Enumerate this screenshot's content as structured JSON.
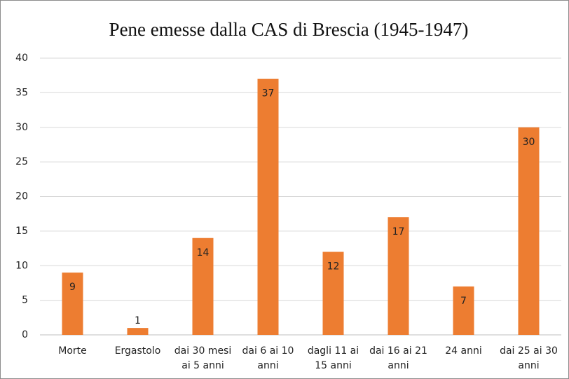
{
  "chart_data": {
    "type": "bar",
    "title": "Pene emesse dalla CAS di Brescia (1945-1947)",
    "categories": [
      "Morte",
      "Ergastolo",
      "dai 30 mesi ai 5 anni",
      "dai 6 ai 10 anni",
      "dagli 11 ai 15 anni",
      "dai 16 ai 21 anni",
      "24 anni",
      "dai 25 ai 30 anni"
    ],
    "values": [
      9,
      1,
      14,
      37,
      12,
      17,
      7,
      30
    ],
    "color": "#ed7d31",
    "ylim": [
      0,
      40
    ],
    "yticks": [
      0,
      5,
      10,
      15,
      20,
      25,
      30,
      35,
      40
    ],
    "grid": true
  }
}
